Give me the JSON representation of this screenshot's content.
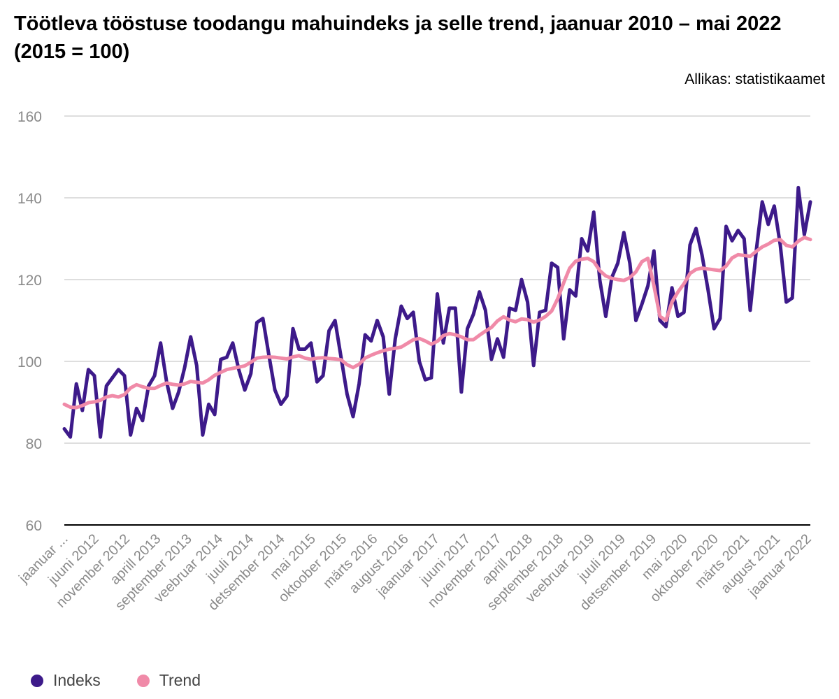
{
  "title": "Töötleva tööstuse toodangu mahuindeks ja selle trend, jaanuar 2010 – mai 2022 (2015 = 100)",
  "source": "Allikas: statistikaamet",
  "chart_data": {
    "type": "line",
    "title": "Töötleva tööstuse toodangu mahuindeks ja selle trend, jaanuar 2010 – mai 2022 (2015 = 100)",
    "xlabel": "",
    "ylabel": "",
    "ylim": [
      60,
      160
    ],
    "yticks": [
      60,
      80,
      100,
      120,
      140,
      160
    ],
    "grid": true,
    "legend_position": "bottom-left",
    "x_tick_labels": [
      "jaanuar ...",
      "juuni 2012",
      "november 2012",
      "aprill 2013",
      "september 2013",
      "veebruar 2014",
      "juuli 2014",
      "detsember 2014",
      "mai 2015",
      "oktoober 2015",
      "märts 2016",
      "august 2016",
      "jaanuar 2017",
      "juuni 2017",
      "november 2017",
      "aprill 2018",
      "september 2018",
      "veebruar 2019",
      "juuli 2019",
      "detsember 2019",
      "mai 2020",
      "oktoober 2020",
      "märts 2021",
      "august 2021",
      "jaanuar 2022"
    ],
    "series": [
      {
        "name": "Indeks",
        "color": "#3d1a8a",
        "values": [
          83.5,
          81.5,
          94.5,
          88.0,
          98.0,
          96.5,
          81.5,
          94.0,
          96.0,
          98.0,
          96.5,
          82.0,
          88.5,
          85.5,
          94.0,
          96.5,
          104.5,
          95.0,
          88.5,
          92.5,
          98.5,
          106.0,
          99.0,
          82.0,
          89.5,
          87.0,
          100.5,
          101.0,
          104.5,
          98.0,
          93.0,
          97.0,
          109.5,
          110.5,
          101.5,
          93.0,
          89.5,
          91.5,
          108.0,
          103.0,
          103.0,
          104.5,
          95.0,
          96.5,
          107.5,
          110.0,
          101.0,
          92.0,
          86.5,
          94.5,
          106.5,
          105.0,
          110.0,
          106.0,
          92.0,
          105.5,
          113.5,
          110.5,
          112.0,
          100.0,
          95.5,
          96.0,
          116.5,
          104.5,
          113.0,
          113.0,
          92.5,
          108.0,
          111.5,
          117.0,
          112.5,
          100.5,
          105.5,
          101.0,
          113.0,
          112.5,
          120.0,
          114.5,
          99.0,
          112.0,
          112.5,
          124.0,
          123.0,
          105.5,
          117.5,
          116.0,
          130.0,
          127.0,
          136.5,
          120.0,
          111.0,
          120.5,
          124.0,
          131.5,
          124.0,
          110.0,
          114.0,
          118.5,
          127.0,
          110.0,
          108.5,
          118.0,
          111.0,
          112.0,
          128.5,
          132.5,
          126.0,
          117.5,
          108.0,
          110.5,
          133.0,
          129.5,
          132.0,
          130.0,
          112.5,
          127.0,
          139.0,
          133.5,
          138.0,
          128.5,
          114.5,
          115.5,
          142.5,
          131.0,
          139.0
        ]
      },
      {
        "name": "Trend",
        "color": "#f08aa8",
        "values": [
          89.5,
          88.8,
          88.7,
          89.2,
          89.9,
          90.1,
          90.5,
          91.3,
          91.6,
          91.3,
          91.9,
          93.5,
          94.3,
          93.8,
          93.4,
          93.4,
          94.1,
          94.7,
          94.4,
          94.2,
          94.5,
          95.1,
          94.9,
          94.7,
          95.5,
          96.6,
          97.3,
          98.0,
          98.3,
          98.6,
          98.9,
          99.8,
          100.8,
          101.0,
          101.1,
          101.0,
          100.8,
          100.6,
          101.1,
          101.4,
          100.8,
          100.5,
          100.8,
          100.9,
          100.7,
          100.6,
          100.4,
          99.2,
          98.5,
          99.3,
          100.8,
          101.5,
          102.1,
          102.6,
          103.0,
          103.2,
          103.5,
          104.4,
          105.3,
          105.6,
          105.0,
          104.2,
          104.9,
          106.3,
          106.8,
          106.5,
          106.0,
          105.3,
          105.3,
          106.4,
          107.4,
          108.3,
          109.9,
          110.9,
          110.1,
          109.7,
          110.4,
          110.2,
          109.6,
          110.1,
          111.0,
          112.3,
          115.3,
          119.2,
          122.8,
          124.5,
          125.0,
          125.2,
          124.4,
          122.2,
          120.9,
          120.3,
          120.0,
          119.8,
          120.5,
          121.9,
          124.4,
          125.2,
          118.5,
          111.0,
          110.0,
          114.5,
          117.0,
          119.0,
          121.5,
          122.5,
          122.8,
          122.6,
          122.4,
          122.2,
          123.3,
          125.3,
          126.1,
          125.9,
          125.7,
          126.9,
          128.0,
          128.7,
          129.6,
          129.8,
          128.4,
          128.0,
          129.4,
          130.3,
          129.8
        ]
      }
    ]
  }
}
